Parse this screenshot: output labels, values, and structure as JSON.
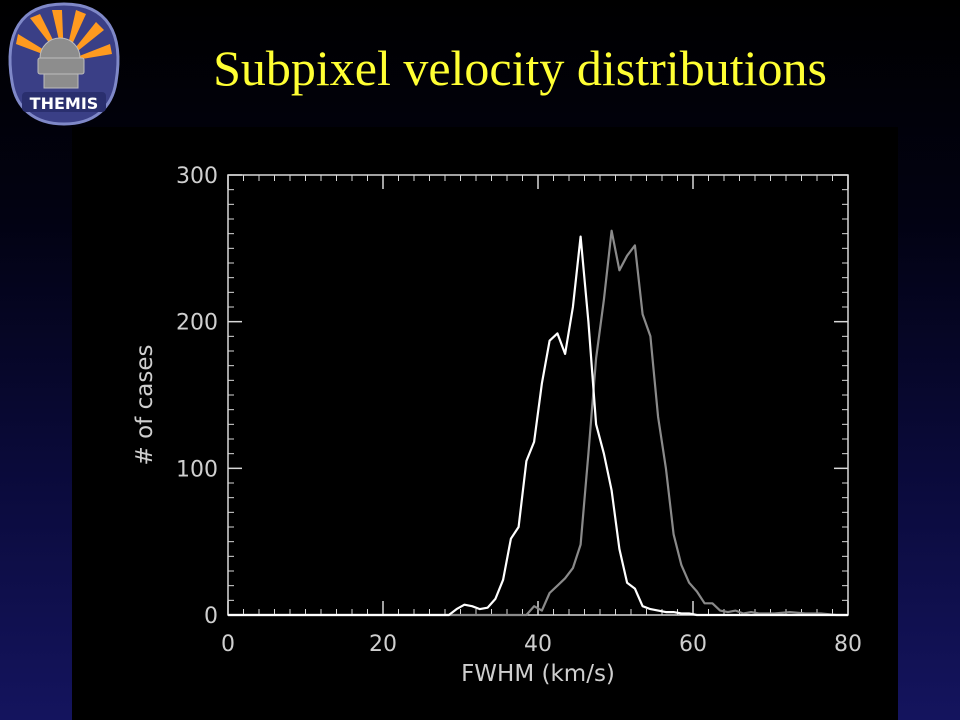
{
  "slide": {
    "title": "Subpixel velocity distributions"
  },
  "logo": {
    "text": "THEMIS",
    "icon": "themis-telescope-sunburst-icon"
  },
  "chart_data": {
    "type": "line",
    "title": "",
    "xlabel": "FWHM (km/s)",
    "ylabel": "# of cases",
    "xlim": [
      0,
      80
    ],
    "ylim": [
      0,
      300
    ],
    "x_ticks": [
      0,
      20,
      40,
      60,
      80
    ],
    "y_ticks": [
      0,
      100,
      200,
      300
    ],
    "legend": "none",
    "grid": false,
    "series": [
      {
        "color": "#ffffff",
        "x": [
          0,
          28.5,
          29.5,
          30.5,
          31.5,
          32.5,
          33.5,
          34.5,
          35.5,
          36.5,
          37.5,
          38.5,
          39.5,
          40.5,
          41.5,
          42.5,
          43.5,
          44.5,
          45.5,
          46.5,
          47.5,
          48.5,
          49.5,
          50.5,
          51.5,
          52.5,
          53.5,
          54.5,
          55.5,
          56.5,
          57.5,
          58.5,
          59.5,
          60.5,
          80
        ],
        "y": [
          0,
          0,
          4,
          7,
          6,
          4,
          5,
          11,
          24,
          52,
          60,
          105,
          118,
          158,
          187,
          192,
          178,
          210,
          258,
          200,
          130,
          110,
          85,
          45,
          22,
          18,
          6,
          4,
          3,
          2,
          2,
          1,
          1,
          0,
          0
        ]
      },
      {
        "color": "#8a8a8a",
        "x": [
          0,
          38.5,
          39.5,
          40.5,
          41.5,
          42.5,
          43.5,
          44.5,
          45.5,
          46.5,
          47.5,
          48.5,
          49.5,
          50.5,
          51.5,
          52.5,
          53.5,
          54.5,
          55.5,
          56.5,
          57.5,
          58.5,
          59.5,
          60.5,
          61.5,
          62.5,
          63.5,
          64.5,
          65.5,
          66.5,
          67.5,
          68.5,
          70.5,
          72.5,
          74.5,
          76.5,
          78.5,
          80
        ],
        "y": [
          0,
          0,
          6,
          3,
          15,
          20,
          25,
          32,
          48,
          110,
          175,
          215,
          262,
          235,
          245,
          252,
          205,
          190,
          135,
          100,
          55,
          34,
          22,
          16,
          8,
          8,
          3,
          2,
          3,
          1,
          2,
          1,
          1,
          2,
          1,
          1,
          0,
          0
        ]
      }
    ]
  }
}
